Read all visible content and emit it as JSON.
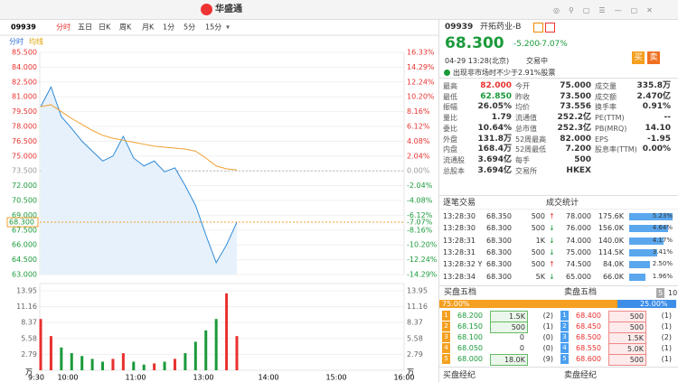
{
  "top_bar": {
    "logo": "华盛通"
  },
  "chart_tabs": {
    "code": "09939",
    "tabs": [
      "分时",
      "五日",
      "日K",
      "周K",
      "月K",
      "1分",
      "5分",
      "15分"
    ]
  },
  "indicators": [
    "分时",
    "均线"
  ],
  "price_chart": {
    "ylim": [
      63,
      85.5
    ],
    "price_ticks": [
      {
        "value": 85.5,
        "label": "85.500"
      },
      {
        "value": 84,
        "label": "84.000"
      },
      {
        "value": 82.5,
        "label": "82.500"
      },
      {
        "value": 81,
        "label": "81.000"
      },
      {
        "value": 79.5,
        "label": "79.500"
      },
      {
        "value": 78,
        "label": "78.000"
      },
      {
        "value": 76.5,
        "label": "76.500"
      },
      {
        "value": 75,
        "label": "75.000"
      },
      {
        "value": 73.5,
        "label": "73.500"
      },
      {
        "value": 72,
        "label": "72.000"
      },
      {
        "value": 70.5,
        "label": "70.500"
      },
      {
        "value": 69,
        "label": "69.000"
      },
      {
        "value": 67.5,
        "label": "67.500"
      },
      {
        "value": 66,
        "label": "66.000"
      },
      {
        "value": 64.5,
        "label": "64.500"
      },
      {
        "value": 63,
        "label": "63.000"
      }
    ],
    "prev_close": 73.5,
    "pct_ticks": [
      {
        "value": 16.33,
        "label": "16.33%"
      },
      {
        "value": 14.29,
        "label": "14.29%"
      },
      {
        "value": 12.24,
        "label": "12.24%"
      },
      {
        "value": 10.2,
        "label": "10.20%"
      },
      {
        "value": 8.16,
        "label": "8.16%"
      },
      {
        "value": 6.12,
        "label": "6.12%"
      },
      {
        "value": 4.08,
        "label": "4.08%"
      },
      {
        "value": 2.04,
        "label": "2.04%"
      },
      {
        "value": 0,
        "label": "0.00%"
      },
      {
        "value": -2.04,
        "label": "-2.04%"
      },
      {
        "value": -4.08,
        "label": "-4.08%"
      },
      {
        "value": -6.12,
        "label": "-6.12%"
      },
      {
        "value": -8.16,
        "label": "-8.16%"
      },
      {
        "value": -10.2,
        "label": "-10.20%"
      },
      {
        "value": -12.24,
        "label": "-12.24%"
      },
      {
        "value": -14.29,
        "label": "-14.29%"
      }
    ],
    "current": {
      "value": 68.3,
      "label": "68.300",
      "pct": "-7.07%"
    },
    "price": [
      80,
      82,
      79,
      77.8,
      76.5,
      75.5,
      74.5,
      75,
      77,
      74.8,
      74,
      74.5,
      73.4,
      73.8,
      72,
      70,
      67,
      64.2,
      66,
      68.3
    ],
    "average": [
      80,
      80.2,
      79.5,
      78.8,
      78.2,
      77.6,
      77.1,
      76.8,
      76.6,
      76.4,
      76.2,
      76.0,
      75.9,
      75.8,
      75.7,
      75.5,
      74.8,
      74.0,
      73.7,
      73.6
    ],
    "volume_ticks": [
      13.95,
      11.16,
      8.37,
      5.58,
      2.79
    ],
    "volume_unit": "万",
    "volume": [
      9,
      6,
      4,
      3,
      2.5,
      2,
      1.5,
      2,
      3,
      1.5,
      1,
      1.2,
      1.5,
      2,
      3,
      5,
      7,
      9,
      13.5,
      6
    ],
    "time_labels": [
      "9:30",
      "10:00",
      "11:00",
      "13:00",
      "14:00",
      "15:00",
      "16:00"
    ]
  },
  "quote": {
    "code": "09939",
    "name": "开拓药业-B",
    "price": "68.300",
    "change": "-5.200",
    "change_pct": "-7.07%",
    "time": "04-29 13:28(北京)",
    "status": "交易中",
    "notice": "出现非市场时不少于2.91%股票",
    "buy": "买",
    "sell": "卖"
  },
  "stats": [
    [
      "最高",
      "82.000",
      "今开",
      "75.000",
      "成交量",
      "335.8万"
    ],
    [
      "最低",
      "62.850",
      "昨收",
      "73.500",
      "成交额",
      "2.470亿"
    ],
    [
      "振幅",
      "26.05%",
      "均价",
      "73.556",
      "换手率",
      "0.91%"
    ],
    [
      "量比",
      "1.79",
      "流通值",
      "252.2亿",
      "PE(TTM)",
      "--"
    ],
    [
      "委比",
      "10.64%",
      "总市值",
      "252.3亿",
      "PB(MRQ)",
      "14.10"
    ],
    [
      "外盘",
      "131.8万",
      "52周最高",
      "82.000",
      "EPS",
      "-1.95"
    ],
    [
      "内盘",
      "168.4万",
      "52周最低",
      "7.200",
      "股息率(TTM)",
      "0.00%"
    ],
    [
      "流通股",
      "3.694亿",
      "每手",
      "500"
    ],
    [
      "总股本",
      "3.694亿",
      "交易所",
      "HKEX"
    ]
  ],
  "trades": {
    "title": "逐笔交易",
    "rows": [
      {
        "time": "13:28:30",
        "price": "68.350",
        "volume": "500",
        "direction": "up"
      },
      {
        "time": "13:28:30",
        "price": "68.300",
        "volume": "500",
        "direction": "down"
      },
      {
        "time": "13:28:31",
        "price": "68.300",
        "volume": "1K",
        "direction": "down"
      },
      {
        "time": "13:28:31",
        "price": "68.300",
        "volume": "500",
        "direction": "down"
      },
      {
        "time": "13:28:32 Y",
        "price": "68.300",
        "volume": "500",
        "direction": "up"
      },
      {
        "time": "13:28:34",
        "price": "68.300",
        "volume": "5K",
        "direction": "down"
      }
    ]
  },
  "deal_stats": {
    "title": "成交统计",
    "rows": [
      {
        "price": "78.000",
        "volume": "175.6K",
        "pct": 5.23,
        "pct_label": "5.23%"
      },
      {
        "price": "76.000",
        "volume": "156.0K",
        "pct": 4.64,
        "pct_label": "4.64%"
      },
      {
        "price": "74.000",
        "volume": "140.0K",
        "pct": 4.17,
        "pct_label": "4.17%"
      },
      {
        "price": "75.000",
        "volume": "114.5K",
        "pct": 3.41,
        "pct_label": "3.41%"
      },
      {
        "price": "74.500",
        "volume": "84.0K",
        "pct": 2.5,
        "pct_label": "2.50%"
      },
      {
        "price": "65.000",
        "volume": "66.0K",
        "pct": 1.96,
        "pct_label": "1.96%"
      }
    ]
  },
  "order_book": {
    "bid_title": "买盘五档",
    "ask_title": "卖盘五档",
    "levels": [
      "5",
      "10"
    ],
    "bid_ratio": 75,
    "bid_ratio_label": "75.00%",
    "ask_ratio": 25,
    "ask_ratio_label": "25.00%",
    "bids": [
      [
        "1",
        "68.200",
        "1.5K",
        "(2)"
      ],
      [
        "2",
        "68.150",
        "500",
        "(1)"
      ],
      [
        "3",
        "68.100",
        "0",
        "(0)"
      ],
      [
        "4",
        "68.050",
        "0",
        "(0)"
      ],
      [
        "5",
        "68.000",
        "18.0K",
        "(9)"
      ]
    ],
    "asks": [
      [
        "1",
        "68.400",
        "500",
        "(1)"
      ],
      [
        "2",
        "68.450",
        "500",
        "(1)"
      ],
      [
        "3",
        "68.500",
        "1.5K",
        "(2)"
      ],
      [
        "4",
        "68.550",
        "5.0K",
        "(1)"
      ],
      [
        "5",
        "68.600",
        "500",
        "(1)"
      ]
    ],
    "bid_broker": "买盘经纪",
    "ask_broker": "卖盘经纪"
  }
}
